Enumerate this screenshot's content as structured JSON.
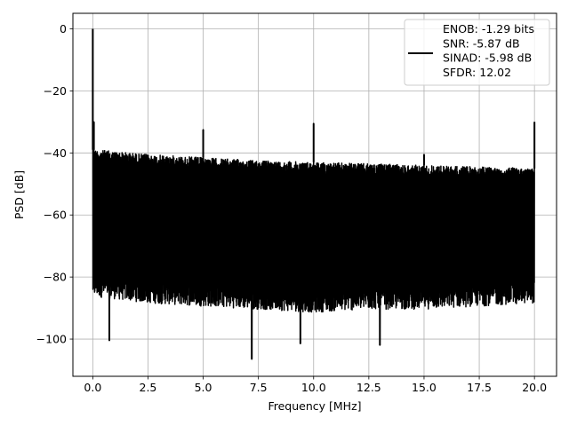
{
  "chart_data": {
    "type": "line",
    "xlabel": "Frequency [MHz]",
    "ylabel": "PSD [dB]",
    "xlim": [
      -0.9,
      21.0
    ],
    "ylim": [
      -112,
      5
    ],
    "grid": true,
    "x_ticks": [
      0.0,
      2.5,
      5.0,
      7.5,
      10.0,
      12.5,
      15.0,
      17.5,
      20.0
    ],
    "x_tick_labels": [
      "0.0",
      "2.5",
      "5.0",
      "7.5",
      "10.0",
      "12.5",
      "15.0",
      "17.5",
      "20.0"
    ],
    "y_ticks": [
      0,
      -20,
      -40,
      -60,
      -80,
      -100
    ],
    "y_tick_labels": [
      "0",
      "−20",
      "−40",
      "−60",
      "−80",
      "−100"
    ],
    "series_color": "#000000",
    "legend": {
      "placement": "top-right",
      "entries": [
        "ENOB: -1.29 bits",
        "SNR: -5.87 dB",
        "SINAD: -5.98 dB",
        "SFDR: 12.02"
      ]
    },
    "series": [
      {
        "noise_floor_x": [
          0.2,
          2.5,
          5.0,
          7.5,
          10.0,
          12.5,
          15.0,
          17.5,
          19.9
        ],
        "noise_floor_top": [
          -39,
          -40.5,
          -41.5,
          -42.5,
          -43,
          -43.5,
          -44,
          -44.5,
          -45
        ],
        "noise_floor_bottom": [
          -84,
          -86,
          -87,
          -88,
          -89,
          -88,
          -88,
          -87,
          -86
        ],
        "peaks": [
          {
            "x": 0.0,
            "y": 0.0
          },
          {
            "x": 0.05,
            "y": -30
          },
          {
            "x": 5.0,
            "y": -32.5
          },
          {
            "x": 10.0,
            "y": -30.5
          },
          {
            "x": 15.0,
            "y": -40.5
          },
          {
            "x": 20.0,
            "y": -30
          }
        ],
        "dips": [
          {
            "x": 0.75,
            "y": -100.5
          },
          {
            "x": 7.2,
            "y": -106.5
          },
          {
            "x": 9.4,
            "y": -101.5
          },
          {
            "x": 13.0,
            "y": -102
          }
        ]
      }
    ]
  }
}
